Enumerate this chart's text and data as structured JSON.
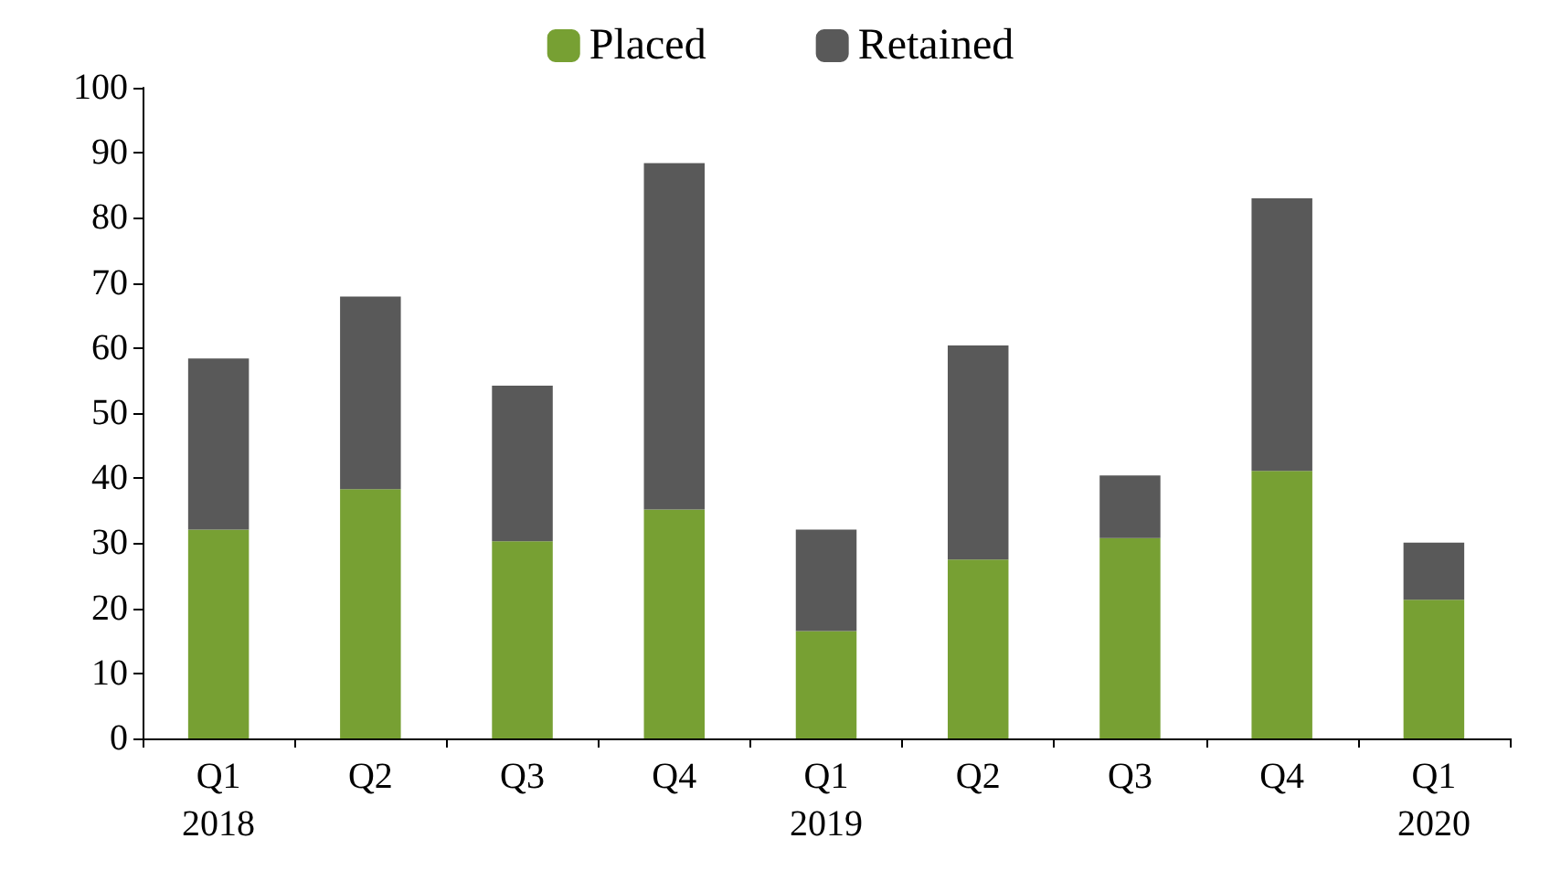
{
  "chart_data": {
    "type": "bar",
    "stacked": true,
    "categories": [
      "Q1\n2018",
      "Q2",
      "Q3",
      "Q4",
      "Q1\n2019",
      "Q2",
      "Q3",
      "Q4",
      "Q1\n2020"
    ],
    "series": [
      {
        "name": "Placed",
        "color": "#77a033",
        "values": [
          32.1,
          38.3,
          30.3,
          35.2,
          16.5,
          27.5,
          30.8,
          41.1,
          21.3
        ]
      },
      {
        "name": "Retained",
        "color": "#595959",
        "values": [
          26.3,
          29.6,
          23.9,
          53.2,
          15.6,
          32.9,
          9.6,
          41.9,
          8.8
        ]
      }
    ],
    "ylim": [
      0,
      100
    ],
    "yticks": [
      0,
      10,
      20,
      30,
      40,
      50,
      60,
      70,
      80,
      90,
      100
    ],
    "grid": false,
    "legend": "top"
  }
}
